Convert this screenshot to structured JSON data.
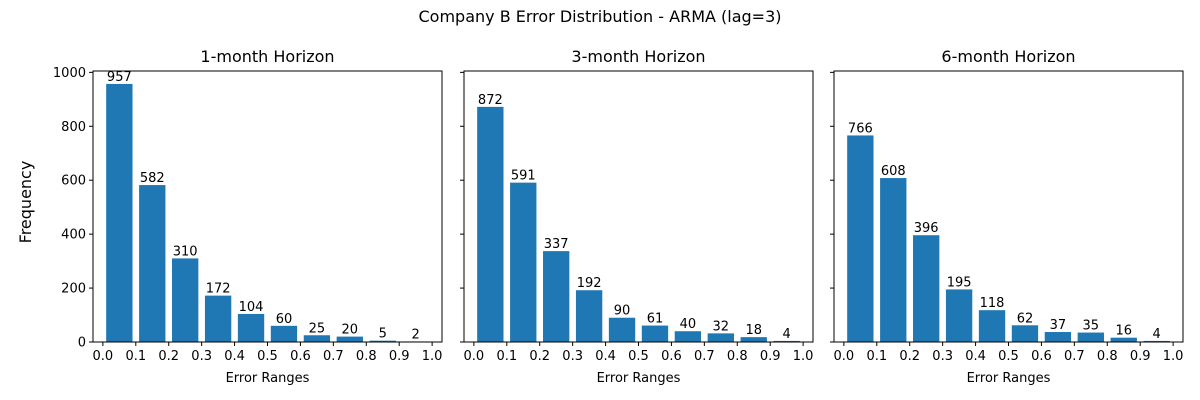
{
  "figure": {
    "suptitle": "Company B Error Distribution - ARMA (lag=3)",
    "ylabel": "Frequency"
  },
  "chart_data": [
    {
      "type": "bar",
      "title": "1-month Horizon",
      "xlabel": "Error Ranges",
      "ylabel": "Frequency",
      "bin_edges": [
        0.0,
        0.1,
        0.2,
        0.3,
        0.4,
        0.5,
        0.6,
        0.7,
        0.8,
        0.9,
        1.0
      ],
      "values": [
        957,
        582,
        310,
        172,
        104,
        60,
        25,
        20,
        5,
        2
      ],
      "xlim": [
        -0.03,
        1.03
      ],
      "ylim": [
        0,
        1005
      ],
      "xticks": [
        "0.0",
        "0.1",
        "0.2",
        "0.3",
        "0.4",
        "0.5",
        "0.6",
        "0.7",
        "0.8",
        "0.9",
        "1.0"
      ],
      "yticks": [
        "0",
        "200",
        "400",
        "600",
        "800",
        "1000"
      ],
      "grid": false,
      "bar_color": "#1f77b4"
    },
    {
      "type": "bar",
      "title": "3-month Horizon",
      "xlabel": "Error Ranges",
      "bin_edges": [
        0.0,
        0.1,
        0.2,
        0.3,
        0.4,
        0.5,
        0.6,
        0.7,
        0.8,
        0.9,
        1.0
      ],
      "values": [
        872,
        591,
        337,
        192,
        90,
        61,
        40,
        32,
        18,
        4
      ],
      "xlim": [
        -0.03,
        1.03
      ],
      "ylim": [
        0,
        1005
      ],
      "xticks": [
        "0.0",
        "0.1",
        "0.2",
        "0.3",
        "0.4",
        "0.5",
        "0.6",
        "0.7",
        "0.8",
        "0.9",
        "1.0"
      ],
      "grid": false,
      "bar_color": "#1f77b4"
    },
    {
      "type": "bar",
      "title": "6-month Horizon",
      "xlabel": "Error Ranges",
      "bin_edges": [
        0.0,
        0.1,
        0.2,
        0.3,
        0.4,
        0.5,
        0.6,
        0.7,
        0.8,
        0.9,
        1.0
      ],
      "values": [
        766,
        608,
        396,
        195,
        118,
        62,
        37,
        35,
        16,
        4
      ],
      "xlim": [
        -0.03,
        1.03
      ],
      "ylim": [
        0,
        1005
      ],
      "xticks": [
        "0.0",
        "0.1",
        "0.2",
        "0.3",
        "0.4",
        "0.5",
        "0.6",
        "0.7",
        "0.8",
        "0.9",
        "1.0"
      ],
      "grid": false,
      "bar_color": "#1f77b4"
    }
  ]
}
